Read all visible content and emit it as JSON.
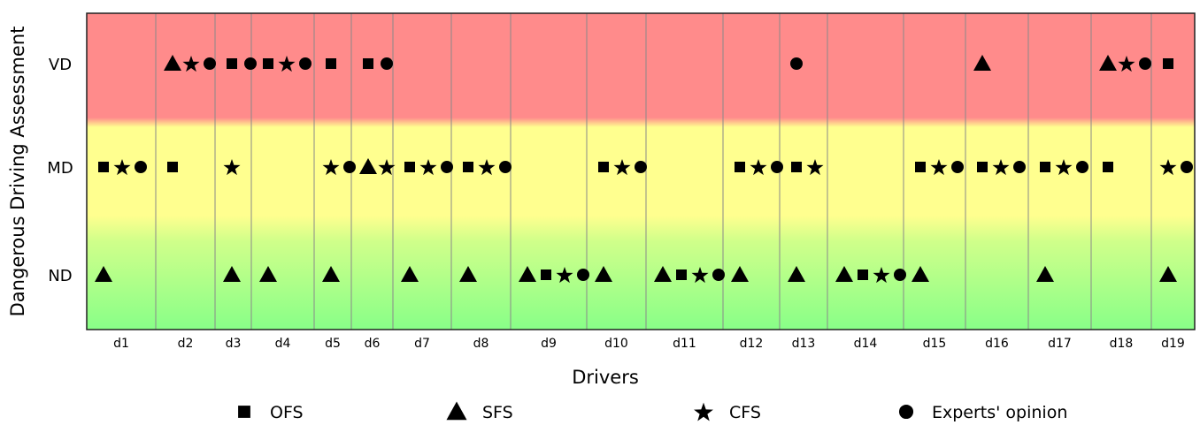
{
  "chart_data": {
    "type": "scatter",
    "title": "",
    "xlabel": "Drivers",
    "ylabel": "Dangerous Driving Assessment",
    "categories": [
      "d1",
      "d2",
      "d3",
      "d4",
      "d5",
      "d6",
      "d7",
      "d8",
      "d9",
      "d10",
      "d11",
      "d12",
      "d13",
      "d14",
      "d15",
      "d16",
      "d17",
      "d18",
      "d19"
    ],
    "levels": [
      "ND",
      "MD",
      "VD"
    ],
    "level_colors": {
      "VD": "#ff8b8b",
      "MD": "#ffff8f",
      "ND": "#8eff8e"
    },
    "legend_position": "bottom",
    "series": [
      {
        "name": "OFS",
        "marker": "square",
        "values": [
          "MD",
          "MD",
          "VD",
          "VD",
          "VD",
          "VD",
          "MD",
          "MD",
          "ND",
          "MD",
          "ND",
          "MD",
          "MD",
          "ND",
          "MD",
          "MD",
          "MD",
          "MD",
          "VD"
        ]
      },
      {
        "name": "SFS",
        "marker": "triangle",
        "values": [
          "ND",
          "VD",
          "ND",
          "ND",
          "ND",
          "MD",
          "ND",
          "ND",
          "ND",
          "ND",
          "ND",
          "ND",
          "ND",
          "ND",
          "ND",
          "VD",
          "ND",
          "VD",
          "ND"
        ]
      },
      {
        "name": "CFS",
        "marker": "star",
        "values": [
          "MD",
          "VD",
          "MD",
          "VD",
          "MD",
          "MD",
          "MD",
          "MD",
          "ND",
          "MD",
          "ND",
          "MD",
          "MD",
          "ND",
          "MD",
          "MD",
          "MD",
          "VD",
          "MD"
        ]
      },
      {
        "name": "Experts' opinion",
        "marker": "circle",
        "values": [
          "MD",
          "VD",
          "VD",
          "VD",
          "MD",
          "VD",
          "MD",
          "MD",
          "ND",
          "MD",
          "ND",
          "MD",
          "VD",
          "ND",
          "MD",
          "MD",
          "MD",
          "VD",
          "MD"
        ]
      }
    ]
  }
}
